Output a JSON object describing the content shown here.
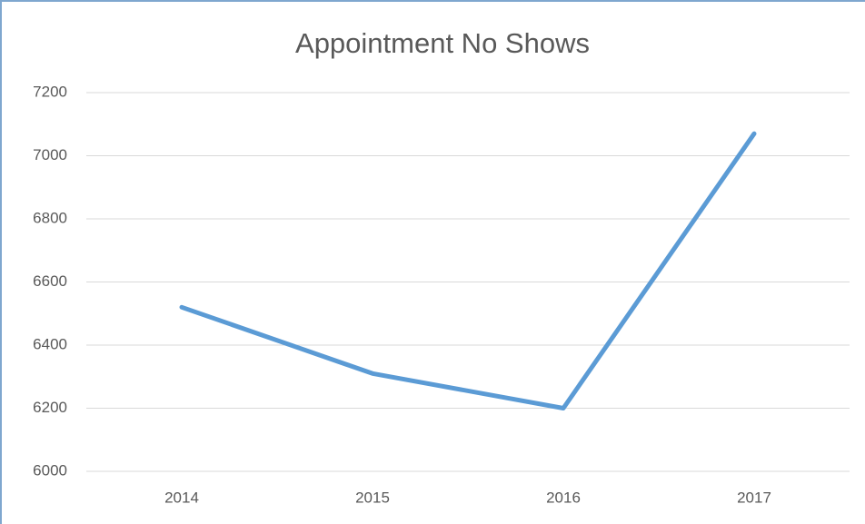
{
  "chart_data": {
    "type": "line",
    "title": "Appointment No Shows",
    "categories": [
      "2014",
      "2015",
      "2016",
      "2017"
    ],
    "series": [
      {
        "name": "No Shows",
        "color": "#5b9bd5",
        "values": [
          6520,
          6310,
          6200,
          7070
        ]
      }
    ],
    "ylim": [
      6000,
      7200
    ],
    "yticks": [
      6000,
      6200,
      6400,
      6600,
      6800,
      7000,
      7200
    ],
    "grid": true
  }
}
